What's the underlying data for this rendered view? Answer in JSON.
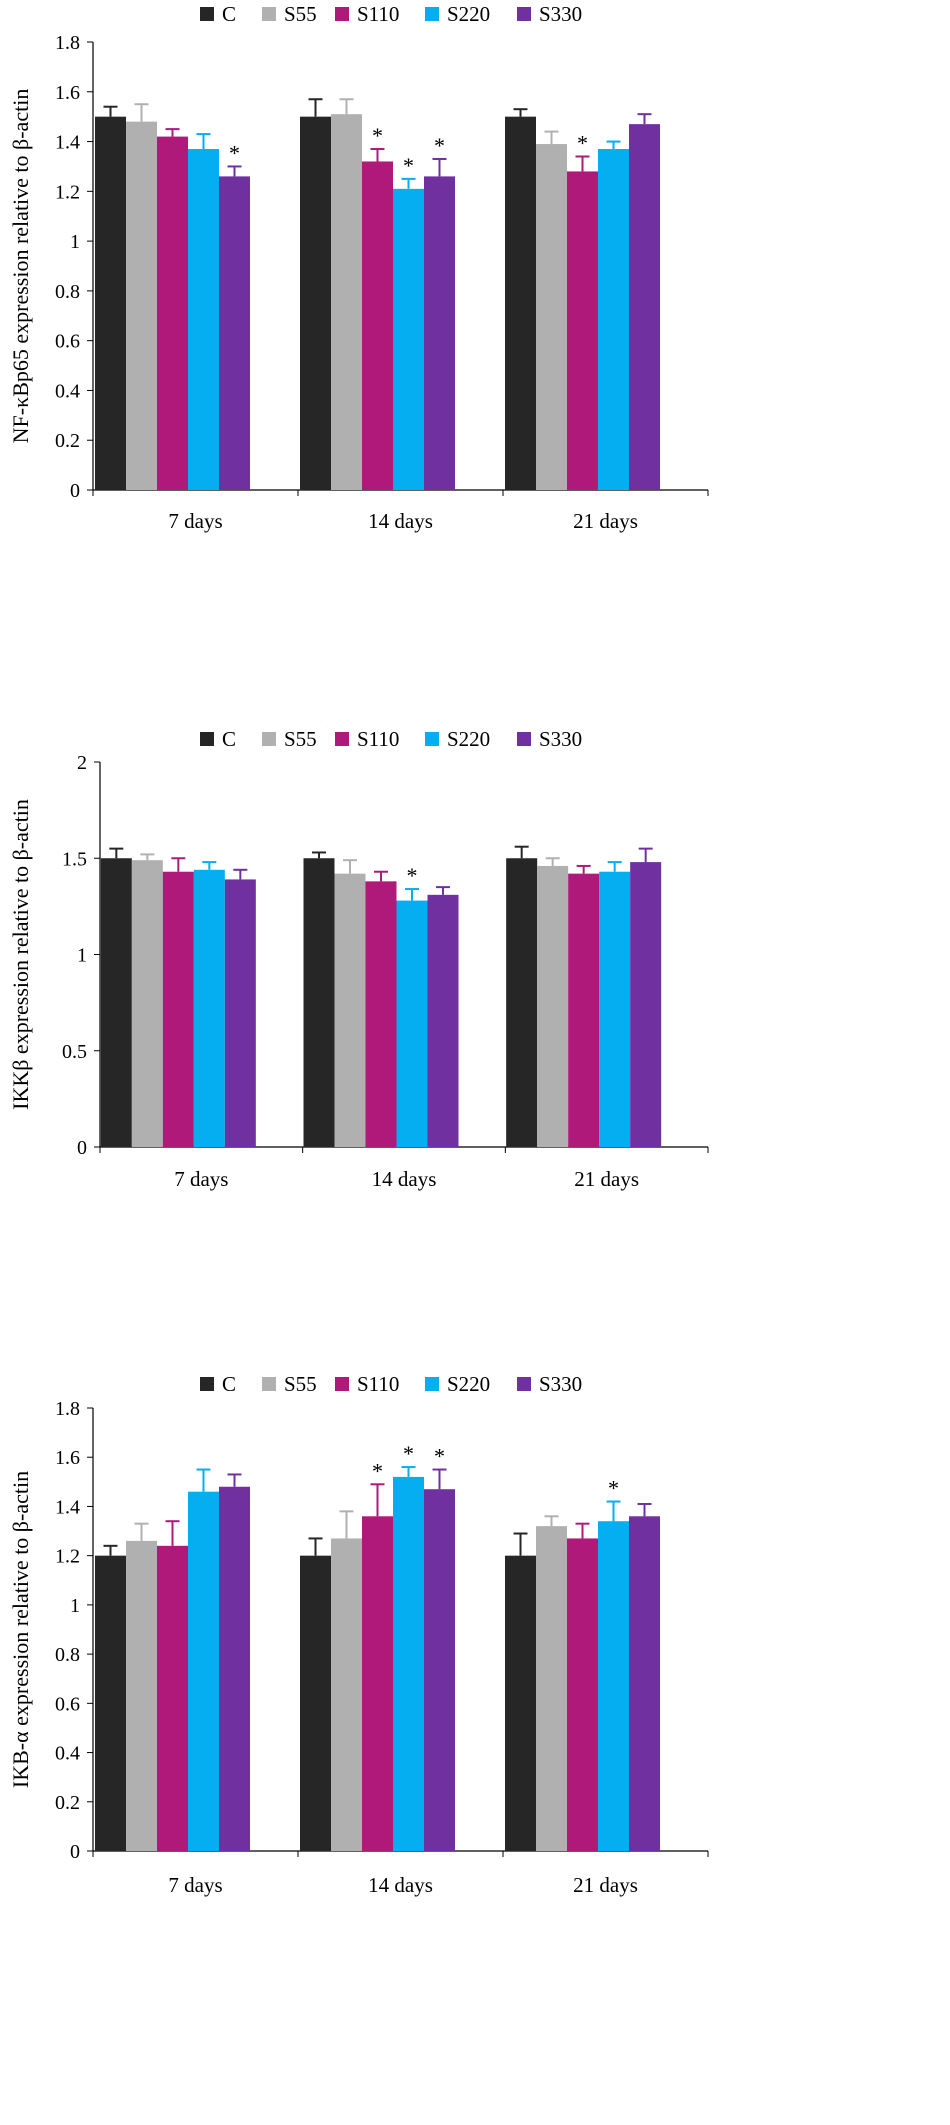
{
  "legend": {
    "series_names": [
      "C",
      "S55",
      "S110",
      "S220",
      "S330"
    ]
  },
  "colors": {
    "C": "#262626",
    "S55": "#b0b0b0",
    "S110": "#ae197a",
    "S220": "#05aef0",
    "S330": "#7030a0",
    "axis": "#000000"
  },
  "chart_data": [
    {
      "type": "bar",
      "title": "",
      "xlabel": "",
      "ylabel": "NF-κBp65 expression relative to β-actin",
      "categories": [
        "7 days",
        "14 days",
        "21 days"
      ],
      "ylim": [
        0,
        1.8
      ],
      "yticks": [
        0,
        0.2,
        0.4,
        0.6,
        0.8,
        1,
        1.2,
        1.4,
        1.6,
        1.8
      ],
      "series": [
        {
          "name": "C",
          "values": [
            1.5,
            1.5,
            1.5
          ],
          "errors": [
            0.04,
            0.07,
            0.03
          ],
          "sig": [
            false,
            false,
            false
          ]
        },
        {
          "name": "S55",
          "values": [
            1.48,
            1.51,
            1.39
          ],
          "errors": [
            0.07,
            0.06,
            0.05
          ],
          "sig": [
            false,
            false,
            false
          ]
        },
        {
          "name": "S110",
          "values": [
            1.42,
            1.32,
            1.28
          ],
          "errors": [
            0.03,
            0.05,
            0.06
          ],
          "sig": [
            false,
            true,
            true
          ]
        },
        {
          "name": "S220",
          "values": [
            1.37,
            1.21,
            1.37
          ],
          "errors": [
            0.06,
            0.04,
            0.03
          ],
          "sig": [
            false,
            true,
            false
          ]
        },
        {
          "name": "S330",
          "values": [
            1.26,
            1.26,
            1.47
          ],
          "errors": [
            0.04,
            0.07,
            0.04
          ],
          "sig": [
            true,
            true,
            false
          ]
        }
      ]
    },
    {
      "type": "bar",
      "title": "",
      "xlabel": "",
      "ylabel": "IKKβ expression relative to β-actin",
      "categories": [
        "7 days",
        "14 days",
        "21 days"
      ],
      "ylim": [
        0,
        2
      ],
      "yticks": [
        0,
        0.5,
        1,
        1.5,
        2
      ],
      "series": [
        {
          "name": "C",
          "values": [
            1.5,
            1.5,
            1.5
          ],
          "errors": [
            0.05,
            0.03,
            0.06
          ],
          "sig": [
            false,
            false,
            false
          ]
        },
        {
          "name": "S55",
          "values": [
            1.49,
            1.42,
            1.46
          ],
          "errors": [
            0.03,
            0.07,
            0.04
          ],
          "sig": [
            false,
            false,
            false
          ]
        },
        {
          "name": "S110",
          "values": [
            1.43,
            1.38,
            1.42
          ],
          "errors": [
            0.07,
            0.05,
            0.04
          ],
          "sig": [
            false,
            false,
            false
          ]
        },
        {
          "name": "S220",
          "values": [
            1.44,
            1.28,
            1.43
          ],
          "errors": [
            0.04,
            0.06,
            0.05
          ],
          "sig": [
            false,
            true,
            false
          ]
        },
        {
          "name": "S330",
          "values": [
            1.39,
            1.31,
            1.48
          ],
          "errors": [
            0.05,
            0.04,
            0.07
          ],
          "sig": [
            false,
            false,
            false
          ]
        }
      ]
    },
    {
      "type": "bar",
      "title": "",
      "xlabel": "",
      "ylabel": "IKB-α expression relative to β-actin",
      "categories": [
        "7 days",
        "14 days",
        "21 days"
      ],
      "ylim": [
        0,
        1.8
      ],
      "yticks": [
        0,
        0.2,
        0.4,
        0.6,
        0.8,
        1,
        1.2,
        1.4,
        1.6,
        1.8
      ],
      "series": [
        {
          "name": "C",
          "values": [
            1.2,
            1.2,
            1.2
          ],
          "errors": [
            0.04,
            0.07,
            0.09
          ],
          "sig": [
            false,
            false,
            false
          ]
        },
        {
          "name": "S55",
          "values": [
            1.26,
            1.27,
            1.32
          ],
          "errors": [
            0.07,
            0.11,
            0.04
          ],
          "sig": [
            false,
            false,
            false
          ]
        },
        {
          "name": "S110",
          "values": [
            1.24,
            1.36,
            1.27
          ],
          "errors": [
            0.1,
            0.13,
            0.06
          ],
          "sig": [
            false,
            true,
            false
          ]
        },
        {
          "name": "S220",
          "values": [
            1.46,
            1.52,
            1.34
          ],
          "errors": [
            0.09,
            0.04,
            0.08
          ],
          "sig": [
            false,
            true,
            true
          ]
        },
        {
          "name": "S330",
          "values": [
            1.48,
            1.47,
            1.36
          ],
          "errors": [
            0.05,
            0.08,
            0.05
          ],
          "sig": [
            false,
            true,
            false
          ]
        }
      ]
    }
  ],
  "significance_marker": "*"
}
